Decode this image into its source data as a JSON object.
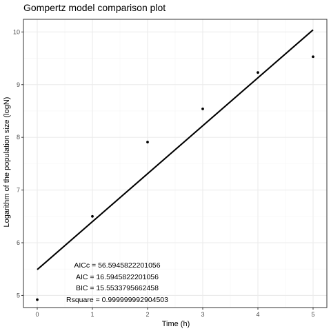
{
  "chart_data": {
    "type": "scatter",
    "title": "Gompertz model comparison plot",
    "xlabel": "Time (h)",
    "ylabel": "Logarithm of the population size (logN)",
    "xlim": [
      -0.25,
      5.25
    ],
    "ylim": [
      4.77,
      10.24
    ],
    "xticks": [
      0,
      1,
      2,
      3,
      4,
      5
    ],
    "yticks": [
      5,
      6,
      7,
      8,
      9,
      10
    ],
    "xminor": [
      0.5,
      1.5,
      2.5,
      3.5,
      4.5
    ],
    "yminor": [
      5.5,
      6.5,
      7.5,
      8.5,
      9.5
    ],
    "grid": true,
    "points": [
      {
        "x": 0,
        "y": 4.92
      },
      {
        "x": 1,
        "y": 6.5
      },
      {
        "x": 2,
        "y": 7.91
      },
      {
        "x": 3,
        "y": 8.54
      },
      {
        "x": 4,
        "y": 9.23
      },
      {
        "x": 5,
        "y": 9.53
      }
    ],
    "fit_line": {
      "x": [
        0,
        5
      ],
      "y": [
        5.49,
        10.04
      ]
    },
    "annotations": [
      {
        "text": "AICc = 56.5945822201056",
        "x": 1.45,
        "y": 5.58
      },
      {
        "text": "AIC = 16.5945822201056",
        "x": 1.45,
        "y": 5.36
      },
      {
        "text": "BIC = 15.5533795662458",
        "x": 1.45,
        "y": 5.15
      },
      {
        "text": "Rsquare = 0.999999992904503",
        "x": 1.45,
        "y": 4.93
      }
    ],
    "colors": {
      "panel_border": "#333333",
      "grid_major": "#ebebeb",
      "grid_minor": "#f5f5f5",
      "points": "#000000",
      "line": "#000000",
      "tick_label": "#4d4d4d"
    }
  }
}
